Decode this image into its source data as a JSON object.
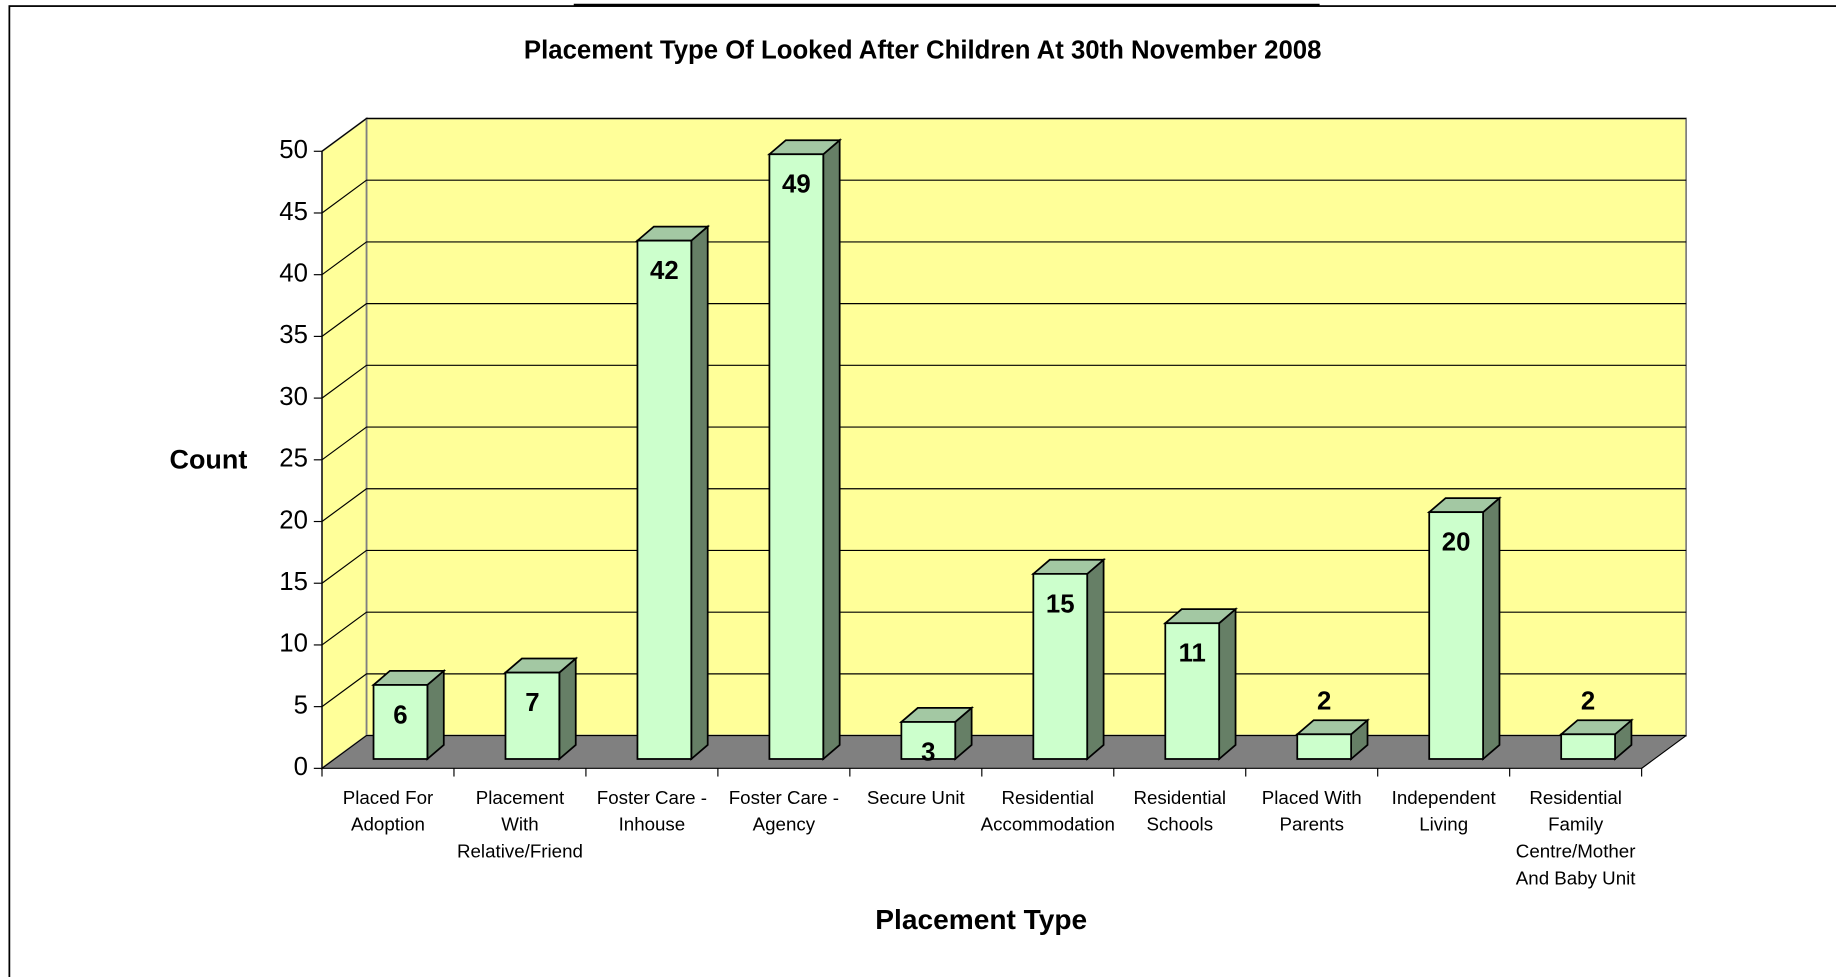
{
  "chart_data": {
    "type": "bar3d",
    "title": "Placement Type Of Looked After Children At 30th November 2008",
    "x_label": "Placement Type",
    "y_label": "Count",
    "categories": [
      "Placed For Adoption",
      "Placement With Relative/Friend",
      "Foster Care - Inhouse",
      "Foster Care - Agency",
      "Secure Unit",
      "Residential Accommodation",
      "Residential Schools",
      "Placed With Parents",
      "Independent Living",
      "Residential Family Centre/Mother And Baby Unit"
    ],
    "values": [
      6,
      7,
      42,
      49,
      3,
      15,
      11,
      2,
      20,
      2
    ],
    "color": "#ccffcc",
    "ylim": [
      0,
      50
    ],
    "yticks": [
      0,
      5,
      10,
      15,
      20,
      25,
      30,
      35,
      40,
      45,
      50
    ],
    "grid": true
  }
}
